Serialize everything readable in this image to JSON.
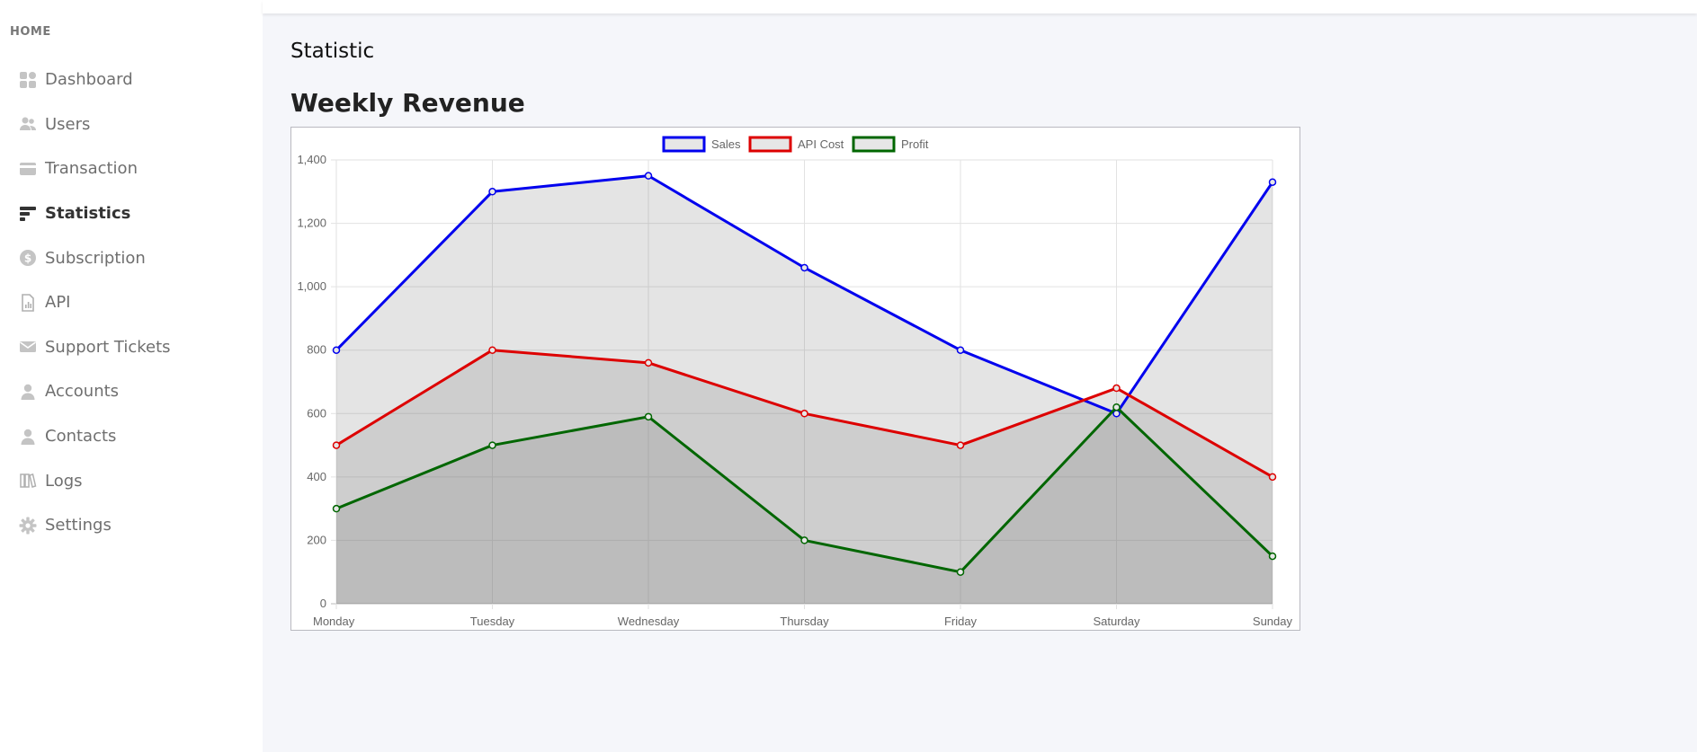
{
  "sidebar": {
    "section": "HOME",
    "items": [
      {
        "key": "dashboard",
        "label": "Dashboard",
        "icon": "dashboard-icon",
        "active": false
      },
      {
        "key": "users",
        "label": "Users",
        "icon": "users-icon",
        "active": false
      },
      {
        "key": "transaction",
        "label": "Transaction",
        "icon": "credit-card-icon",
        "active": false
      },
      {
        "key": "statistics",
        "label": "Statistics",
        "icon": "statistics-icon",
        "active": true
      },
      {
        "key": "subscription",
        "label": "Subscription",
        "icon": "dollar-icon",
        "active": false
      },
      {
        "key": "api",
        "label": "API",
        "icon": "file-chart-icon",
        "active": false
      },
      {
        "key": "support-tickets",
        "label": "Support Tickets",
        "icon": "envelope-icon",
        "active": false
      },
      {
        "key": "accounts",
        "label": "Accounts",
        "icon": "user-icon",
        "active": false
      },
      {
        "key": "contacts",
        "label": "Contacts",
        "icon": "user-icon",
        "active": false
      },
      {
        "key": "logs",
        "label": "Logs",
        "icon": "book-icon",
        "active": false
      },
      {
        "key": "settings",
        "label": "Settings",
        "icon": "gear-icon",
        "active": false
      }
    ]
  },
  "main": {
    "page_title": "Statistic",
    "chart_title": "Weekly Revenue"
  },
  "colors": {
    "sales": "#0000ee",
    "api_cost": "#dd0000",
    "profit": "#006600",
    "fill": "#7a7a7a"
  },
  "chart_data": {
    "type": "line",
    "title": "Weekly Revenue",
    "categories": [
      "Monday",
      "Tuesday",
      "Wednesday",
      "Thursday",
      "Friday",
      "Saturday",
      "Sunday"
    ],
    "series": [
      {
        "name": "Sales",
        "values": [
          800,
          1300,
          1350,
          1060,
          800,
          600,
          1330
        ]
      },
      {
        "name": "API Cost",
        "values": [
          500,
          800,
          760,
          600,
          500,
          680,
          400
        ]
      },
      {
        "name": "Profit",
        "values": [
          300,
          500,
          590,
          200,
          100,
          620,
          150
        ]
      }
    ],
    "ylim": [
      0,
      1400
    ],
    "yticks": [
      "0",
      "200",
      "400",
      "600",
      "800",
      "1,000",
      "1,200",
      "1,400"
    ],
    "ytick_values": [
      0,
      200,
      400,
      600,
      800,
      1000,
      1200,
      1400
    ],
    "filled": true,
    "grid": true,
    "legend": "top-center"
  }
}
